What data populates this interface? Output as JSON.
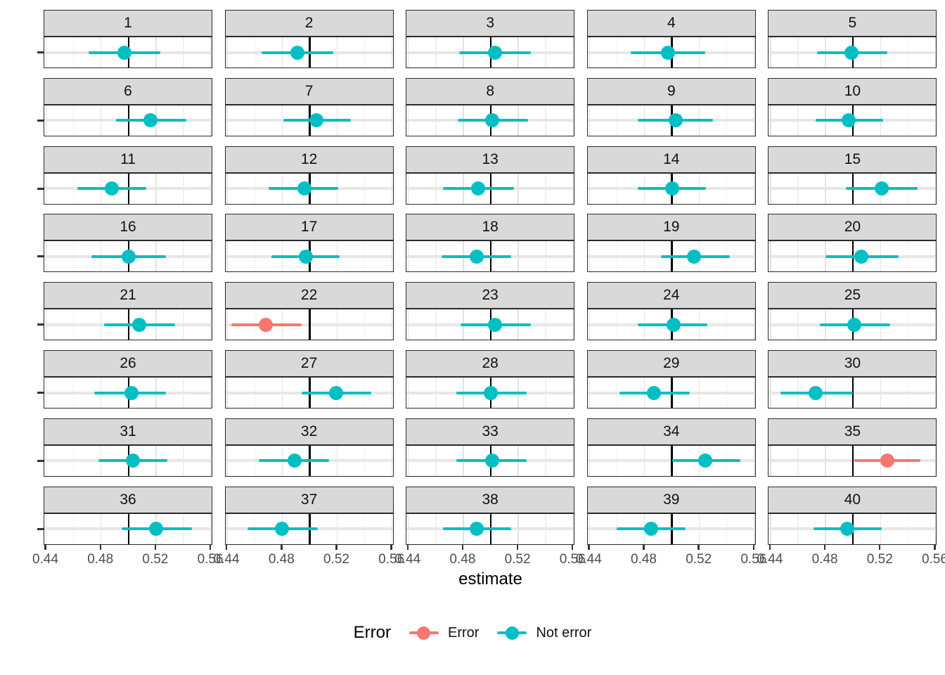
{
  "chart_data": {
    "type": "scatter",
    "subtype": "faceted_point_estimates_with_ci",
    "title": "",
    "xlabel": "estimate",
    "ylabel": "",
    "xlim": [
      0.4387,
      0.5615
    ],
    "x_ticks": [
      0.44,
      0.48,
      0.52,
      0.56
    ],
    "x_tick_labels": [
      "0.44",
      "0.48",
      "0.52",
      "0.56"
    ],
    "x_minor_ticks": [
      0.46,
      0.5,
      0.54
    ],
    "reference_line_x": 0.5,
    "grid": true,
    "facet_layout": {
      "nrow": 8,
      "ncol": 5
    },
    "legend": {
      "title": "Error",
      "position": "bottom",
      "entries": [
        {
          "label": "Error",
          "color": "#F8766D"
        },
        {
          "label": "Not error",
          "color": "#00BFC4"
        }
      ]
    },
    "facets": [
      {
        "label": "1",
        "estimate": 0.497,
        "ci_low": 0.471,
        "ci_high": 0.523,
        "error": false
      },
      {
        "label": "2",
        "estimate": 0.491,
        "ci_low": 0.465,
        "ci_high": 0.517,
        "error": false
      },
      {
        "label": "3",
        "estimate": 0.503,
        "ci_low": 0.477,
        "ci_high": 0.529,
        "error": false
      },
      {
        "label": "4",
        "estimate": 0.497,
        "ci_low": 0.47,
        "ci_high": 0.524,
        "error": false
      },
      {
        "label": "5",
        "estimate": 0.499,
        "ci_low": 0.474,
        "ci_high": 0.525,
        "error": false
      },
      {
        "label": "6",
        "estimate": 0.516,
        "ci_low": 0.491,
        "ci_high": 0.542,
        "error": false
      },
      {
        "label": "7",
        "estimate": 0.505,
        "ci_low": 0.481,
        "ci_high": 0.53,
        "error": false
      },
      {
        "label": "8",
        "estimate": 0.501,
        "ci_low": 0.476,
        "ci_high": 0.527,
        "error": false
      },
      {
        "label": "9",
        "estimate": 0.503,
        "ci_low": 0.475,
        "ci_high": 0.53,
        "error": false
      },
      {
        "label": "10",
        "estimate": 0.497,
        "ci_low": 0.473,
        "ci_high": 0.522,
        "error": false
      },
      {
        "label": "11",
        "estimate": 0.488,
        "ci_low": 0.463,
        "ci_high": 0.513,
        "error": false
      },
      {
        "label": "12",
        "estimate": 0.496,
        "ci_low": 0.47,
        "ci_high": 0.521,
        "error": false
      },
      {
        "label": "13",
        "estimate": 0.491,
        "ci_low": 0.465,
        "ci_high": 0.517,
        "error": false
      },
      {
        "label": "14",
        "estimate": 0.5,
        "ci_low": 0.475,
        "ci_high": 0.525,
        "error": false
      },
      {
        "label": "15",
        "estimate": 0.521,
        "ci_low": 0.495,
        "ci_high": 0.547,
        "error": false
      },
      {
        "label": "16",
        "estimate": 0.5,
        "ci_low": 0.473,
        "ci_high": 0.527,
        "error": false
      },
      {
        "label": "17",
        "estimate": 0.497,
        "ci_low": 0.472,
        "ci_high": 0.522,
        "error": false
      },
      {
        "label": "18",
        "estimate": 0.49,
        "ci_low": 0.464,
        "ci_high": 0.515,
        "error": false
      },
      {
        "label": "19",
        "estimate": 0.516,
        "ci_low": 0.492,
        "ci_high": 0.542,
        "error": false
      },
      {
        "label": "20",
        "estimate": 0.506,
        "ci_low": 0.48,
        "ci_high": 0.533,
        "error": false
      },
      {
        "label": "21",
        "estimate": 0.508,
        "ci_low": 0.482,
        "ci_high": 0.534,
        "error": false
      },
      {
        "label": "22",
        "estimate": 0.468,
        "ci_low": 0.443,
        "ci_high": 0.494,
        "error": true
      },
      {
        "label": "23",
        "estimate": 0.503,
        "ci_low": 0.478,
        "ci_high": 0.529,
        "error": false
      },
      {
        "label": "24",
        "estimate": 0.501,
        "ci_low": 0.475,
        "ci_high": 0.526,
        "error": false
      },
      {
        "label": "25",
        "estimate": 0.501,
        "ci_low": 0.476,
        "ci_high": 0.527,
        "error": false
      },
      {
        "label": "26",
        "estimate": 0.502,
        "ci_low": 0.475,
        "ci_high": 0.527,
        "error": false
      },
      {
        "label": "27",
        "estimate": 0.519,
        "ci_low": 0.494,
        "ci_high": 0.545,
        "error": false
      },
      {
        "label": "28",
        "estimate": 0.5,
        "ci_low": 0.475,
        "ci_high": 0.526,
        "error": false
      },
      {
        "label": "29",
        "estimate": 0.487,
        "ci_low": 0.462,
        "ci_high": 0.513,
        "error": false
      },
      {
        "label": "30",
        "estimate": 0.473,
        "ci_low": 0.447,
        "ci_high": 0.5,
        "error": false
      },
      {
        "label": "31",
        "estimate": 0.503,
        "ci_low": 0.478,
        "ci_high": 0.528,
        "error": false
      },
      {
        "label": "32",
        "estimate": 0.489,
        "ci_low": 0.463,
        "ci_high": 0.514,
        "error": false
      },
      {
        "label": "33",
        "estimate": 0.501,
        "ci_low": 0.475,
        "ci_high": 0.526,
        "error": false
      },
      {
        "label": "34",
        "estimate": 0.524,
        "ci_low": 0.5,
        "ci_high": 0.55,
        "error": false
      },
      {
        "label": "35",
        "estimate": 0.525,
        "ci_low": 0.501,
        "ci_high": 0.549,
        "error": true
      },
      {
        "label": "36",
        "estimate": 0.52,
        "ci_low": 0.495,
        "ci_high": 0.546,
        "error": false
      },
      {
        "label": "37",
        "estimate": 0.48,
        "ci_low": 0.455,
        "ci_high": 0.506,
        "error": false
      },
      {
        "label": "38",
        "estimate": 0.49,
        "ci_low": 0.465,
        "ci_high": 0.515,
        "error": false
      },
      {
        "label": "39",
        "estimate": 0.485,
        "ci_low": 0.46,
        "ci_high": 0.51,
        "error": false
      },
      {
        "label": "40",
        "estimate": 0.496,
        "ci_low": 0.471,
        "ci_high": 0.521,
        "error": false
      }
    ]
  },
  "colors": {
    "error": "#F8766D",
    "not_error": "#00BFC4",
    "strip_bg": "#D9D9D9",
    "panel_border": "#2b2b2b",
    "grid_major": "#e3e3e3",
    "grid_minor": "#f1f1f1",
    "reference_line": "#000000",
    "tick_label": "#4d4d4d"
  }
}
